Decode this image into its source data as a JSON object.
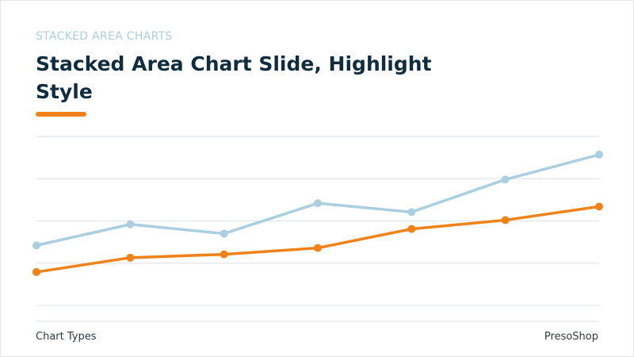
{
  "chart_data": {
    "type": "line",
    "stacked": true,
    "subtitle": "STACKED AREA CHARTS",
    "title": "Stacked Area Chart Slide, Highlight Style",
    "footer_left": "Chart Types",
    "footer_right": "PresoShop",
    "categories": [
      null,
      null,
      null,
      null,
      null,
      null,
      null
    ],
    "series": [
      {
        "color": "#f0821a",
        "values": [
          0.79,
          1.13,
          1.21,
          1.36,
          1.81,
          2.02,
          2.34
        ]
      },
      {
        "color": "#a9cfe0",
        "values": [
          0.63,
          0.79,
          0.49,
          1.06,
          0.4,
          0.96,
          1.23
        ]
      }
    ],
    "ylim": [
      0,
      4
    ],
    "yticks": [
      0,
      1,
      2,
      3,
      4
    ],
    "grid": true
  }
}
